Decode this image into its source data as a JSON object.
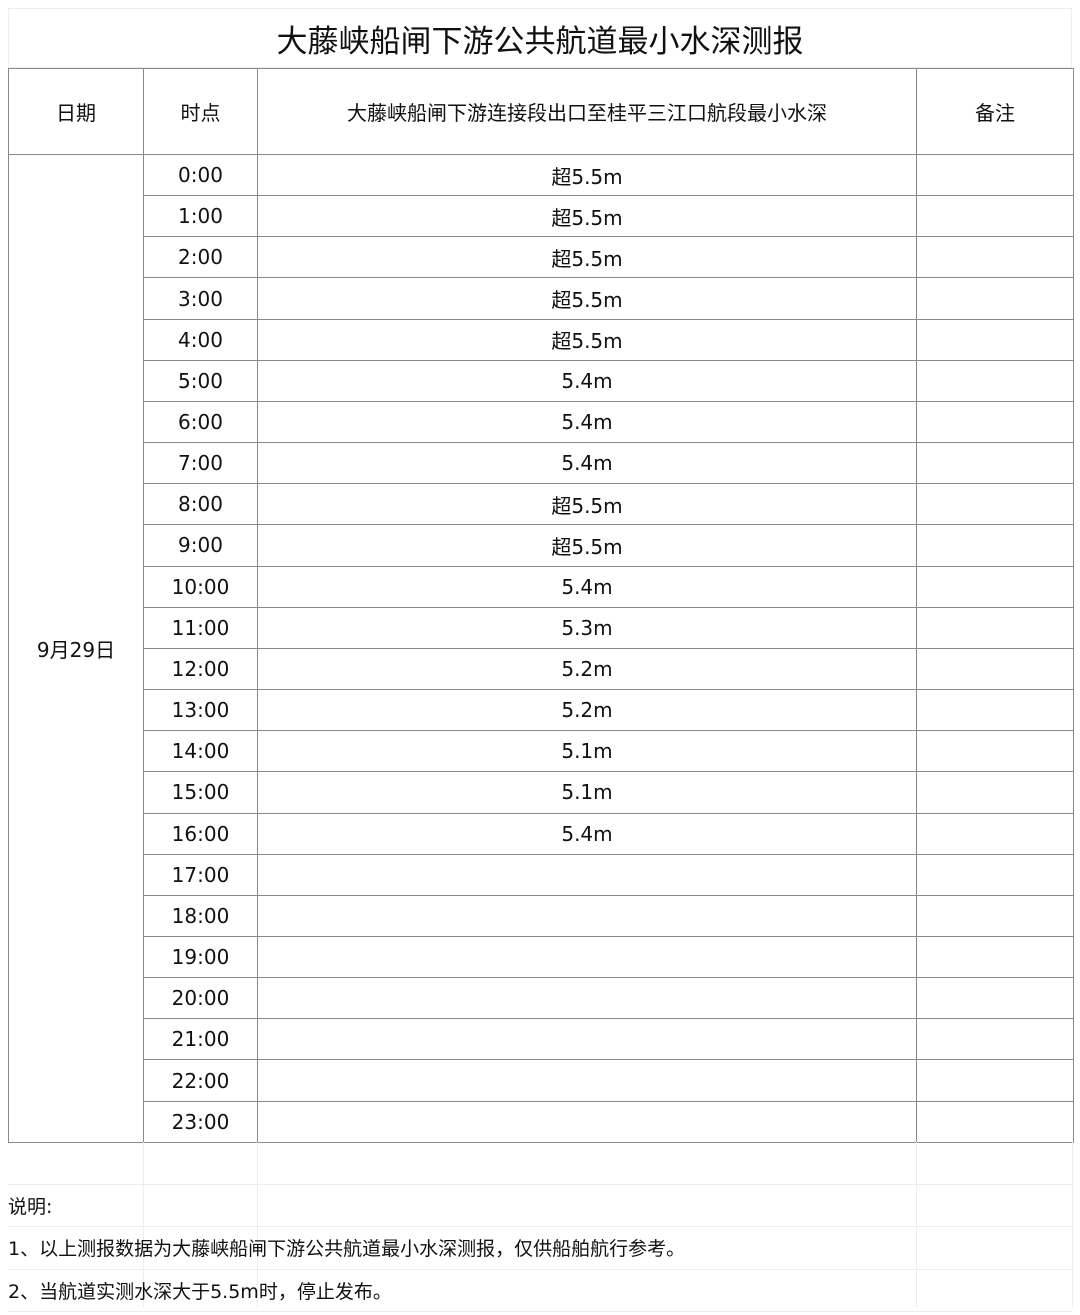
{
  "title": "大藤峡船闸下游公共航道最小水深测报",
  "headers": {
    "date": "日期",
    "time": "时点",
    "depth": "大藤峡船闸下游连接段出口至桂平三江口航段最小水深",
    "remark": "备注"
  },
  "date": "9月29日",
  "rows": [
    {
      "time": "0:00",
      "depth": "超5.5m",
      "remark": ""
    },
    {
      "time": "1:00",
      "depth": "超5.5m",
      "remark": ""
    },
    {
      "time": "2:00",
      "depth": "超5.5m",
      "remark": ""
    },
    {
      "time": "3:00",
      "depth": "超5.5m",
      "remark": ""
    },
    {
      "time": "4:00",
      "depth": "超5.5m",
      "remark": ""
    },
    {
      "time": "5:00",
      "depth": "5.4m",
      "remark": ""
    },
    {
      "time": "6:00",
      "depth": "5.4m",
      "remark": ""
    },
    {
      "time": "7:00",
      "depth": "5.4m",
      "remark": ""
    },
    {
      "time": "8:00",
      "depth": "超5.5m",
      "remark": ""
    },
    {
      "time": "9:00",
      "depth": "超5.5m",
      "remark": ""
    },
    {
      "time": "10:00",
      "depth": "5.4m",
      "remark": ""
    },
    {
      "time": "11:00",
      "depth": "5.3m",
      "remark": ""
    },
    {
      "time": "12:00",
      "depth": "5.2m",
      "remark": ""
    },
    {
      "time": "13:00",
      "depth": "5.2m",
      "remark": ""
    },
    {
      "time": "14:00",
      "depth": "5.1m",
      "remark": ""
    },
    {
      "time": "15:00",
      "depth": "5.1m",
      "remark": ""
    },
    {
      "time": "16:00",
      "depth": "5.4m",
      "remark": ""
    },
    {
      "time": "17:00",
      "depth": "",
      "remark": ""
    },
    {
      "time": "18:00",
      "depth": "",
      "remark": ""
    },
    {
      "time": "19:00",
      "depth": "",
      "remark": ""
    },
    {
      "time": "20:00",
      "depth": "",
      "remark": ""
    },
    {
      "time": "21:00",
      "depth": "",
      "remark": ""
    },
    {
      "time": "22:00",
      "depth": "",
      "remark": ""
    },
    {
      "time": "23:00",
      "depth": "",
      "remark": ""
    }
  ],
  "notes": {
    "heading": "说明:",
    "items": [
      "1、以上测报数据为大藤峡船闸下游公共航道最小水深测报，仅供船舶航行参考。",
      "2、当航道实测水深大于5.5m时，停止发布。"
    ]
  }
}
